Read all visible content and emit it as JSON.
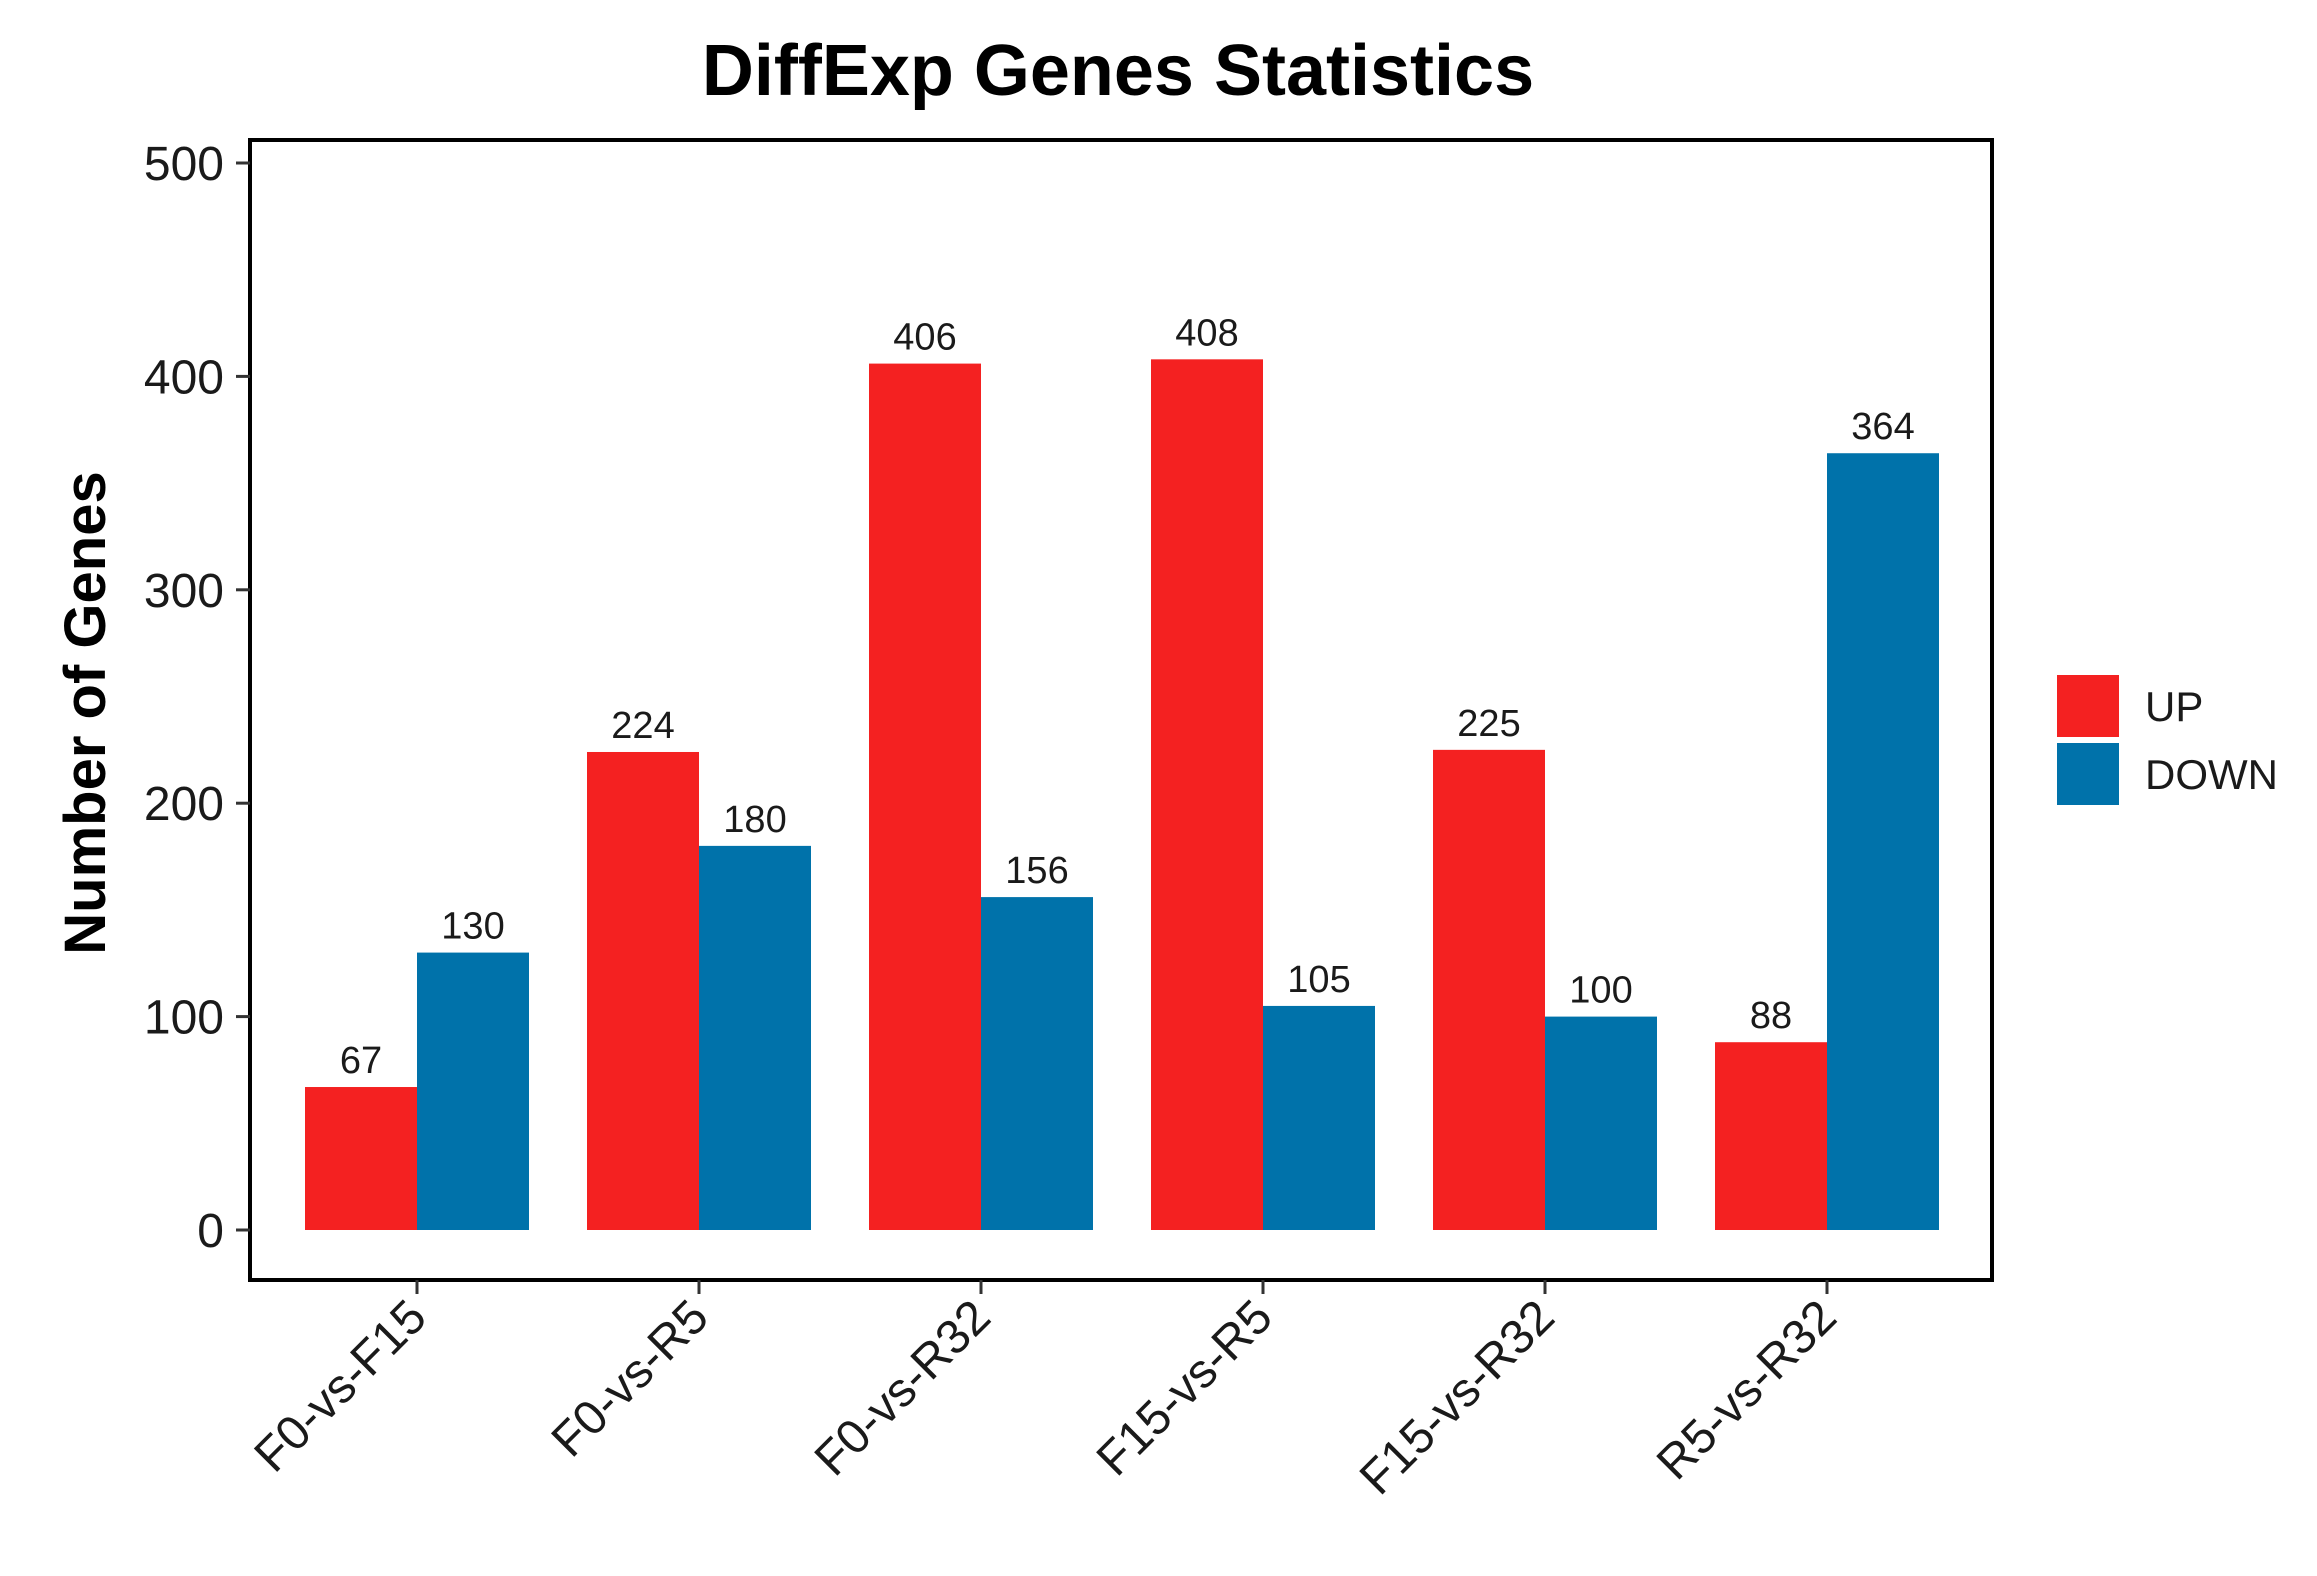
{
  "chart_data": {
    "type": "bar",
    "title": "DiffExp Genes Statistics",
    "xlabel": "",
    "ylabel": "Number of Genes",
    "categories": [
      "F0-vs-F15",
      "F0-vs-R5",
      "F0-vs-R32",
      "F15-vs-R5",
      "F15-vs-R32",
      "R5-vs-R32"
    ],
    "series": [
      {
        "name": "UP",
        "color": "#f42121",
        "values": [
          67,
          224,
          406,
          408,
          225,
          88
        ]
      },
      {
        "name": "DOWN",
        "color": "#0072aa",
        "values": [
          130,
          180,
          156,
          105,
          100,
          364
        ]
      }
    ],
    "ylim": [
      0,
      500
    ],
    "yticks": [
      0,
      100,
      200,
      300,
      400,
      500
    ],
    "legend_position": "right",
    "grid": false
  }
}
